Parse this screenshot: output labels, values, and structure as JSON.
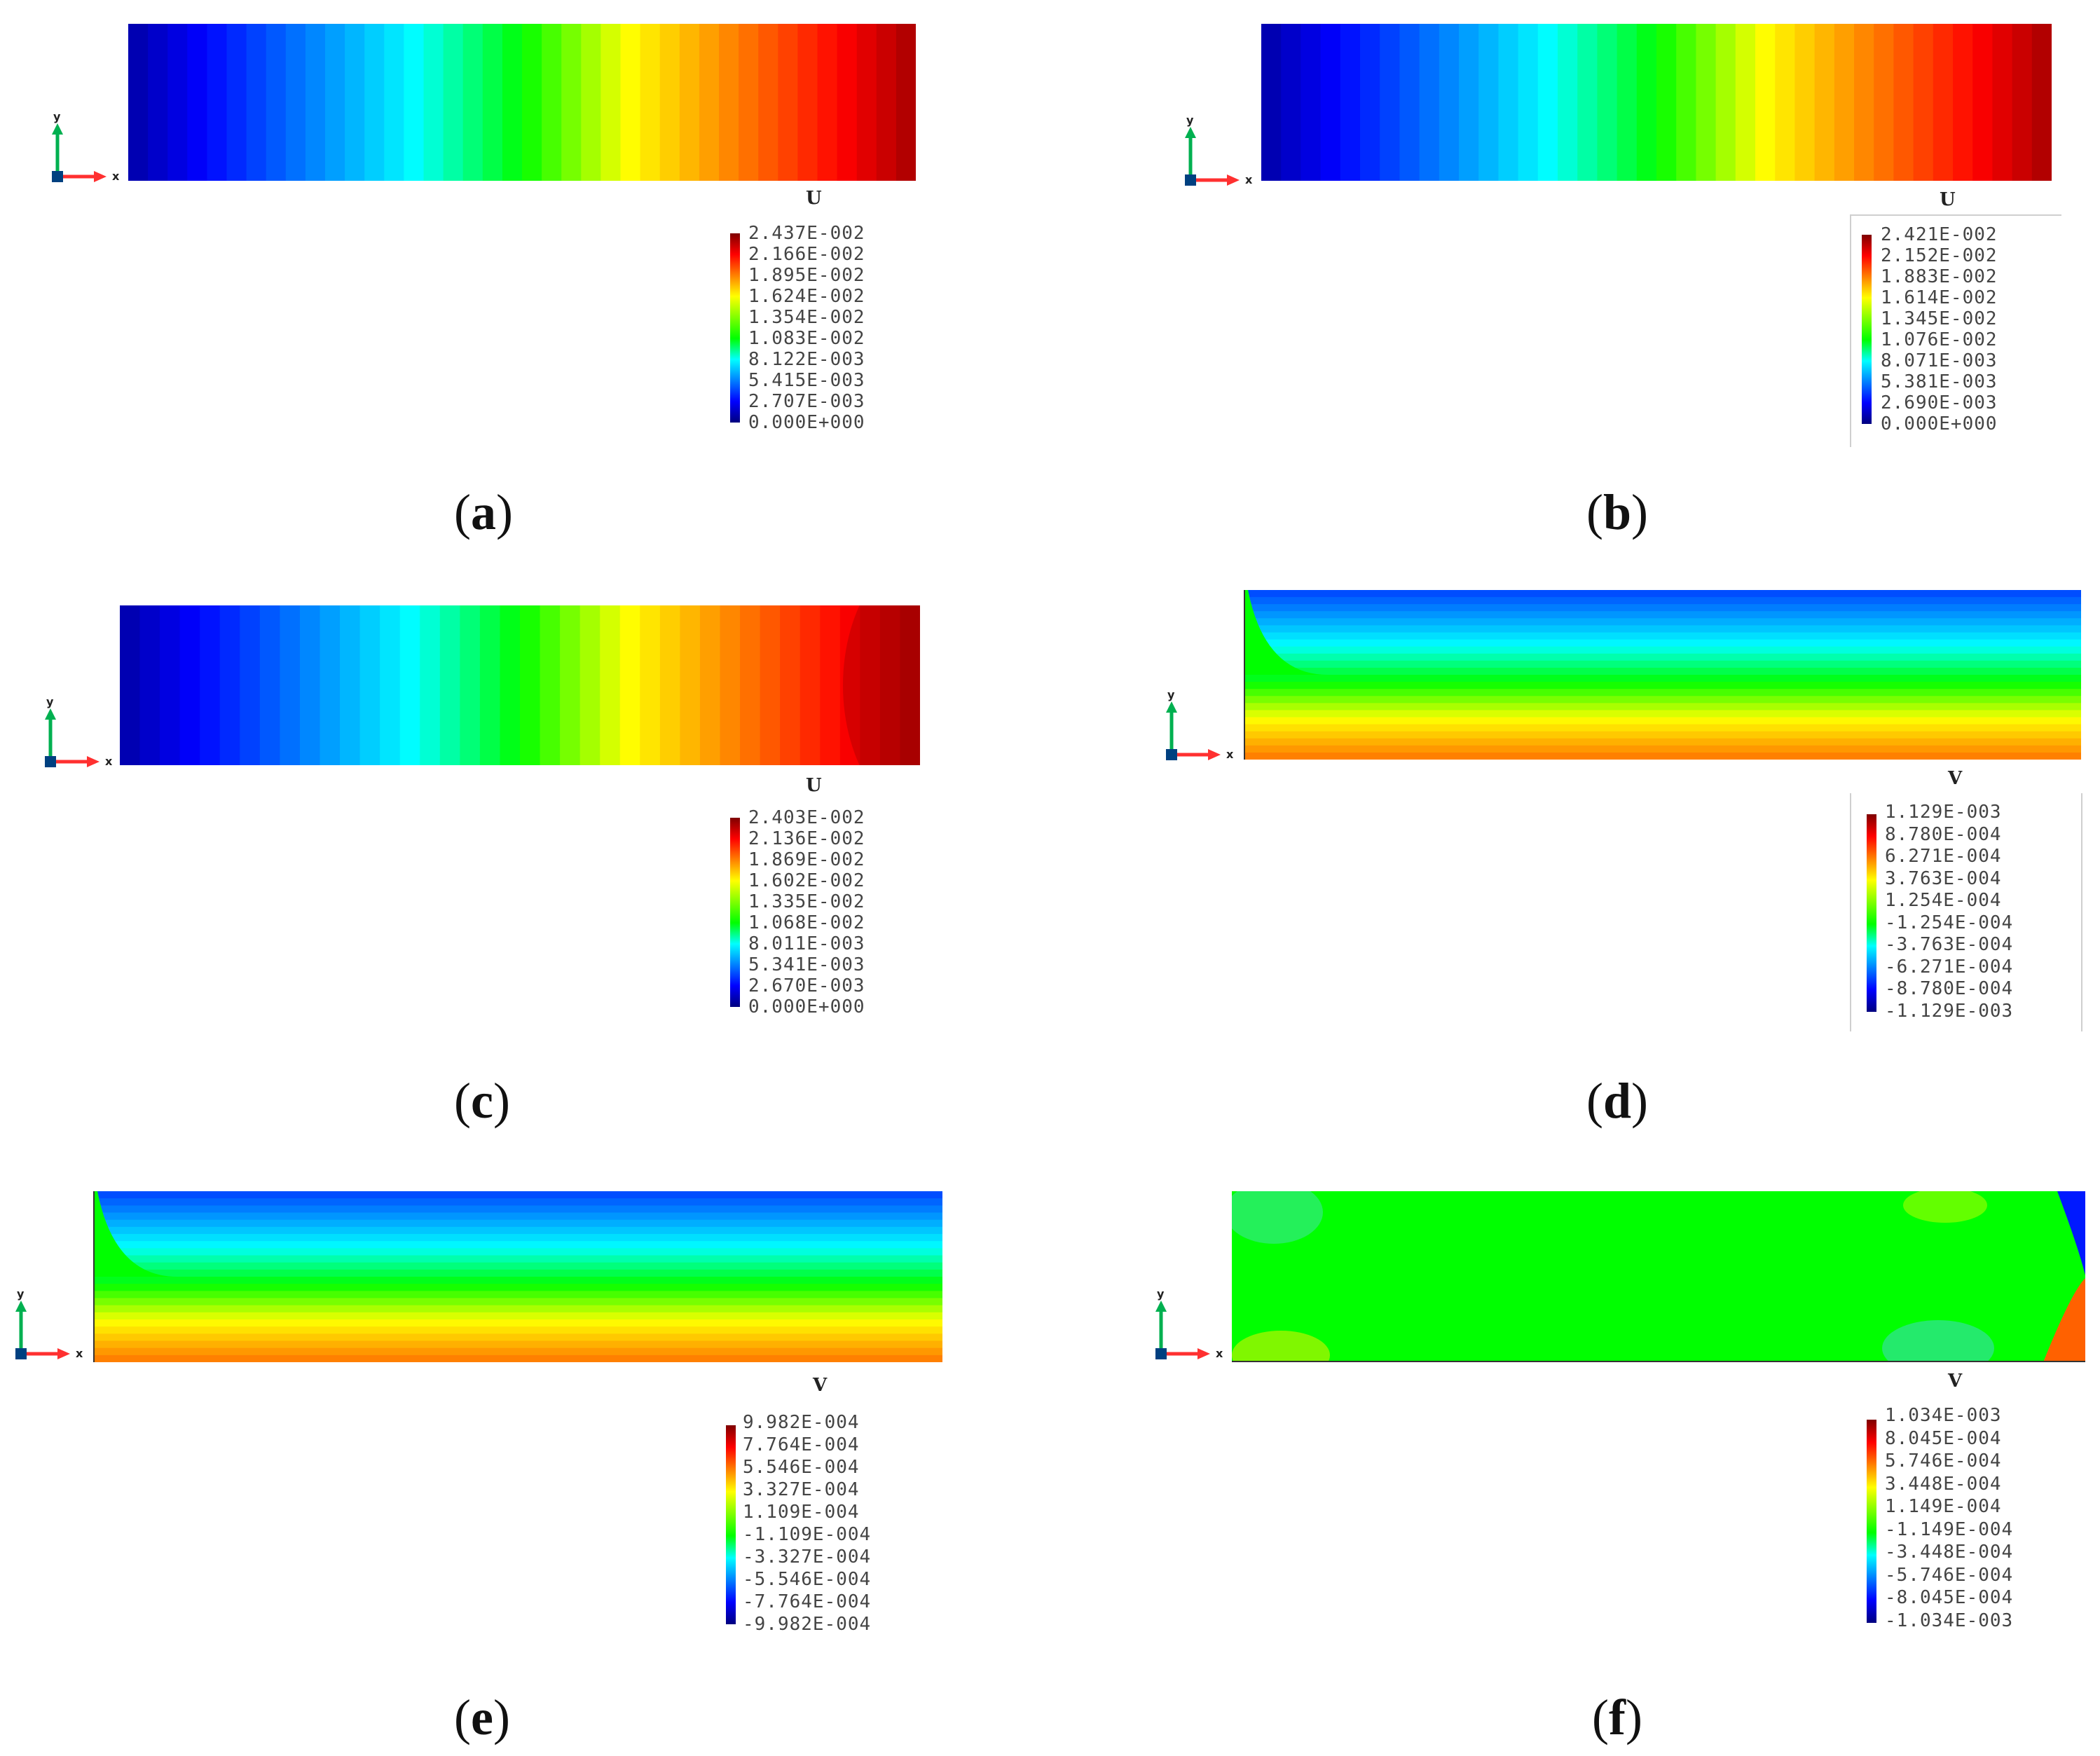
{
  "colors": {
    "scale": [
      "#00007f",
      "#0000ff",
      "#0080ff",
      "#00ffff",
      "#00ff00",
      "#80ff00",
      "#ffff00",
      "#ff8000",
      "#ff0000",
      "#7f0000"
    ],
    "axis_x": "#ff3030",
    "axis_y": "#00b050",
    "axis_z": "#004080"
  },
  "axes_labels": {
    "x": "x",
    "y": "y"
  },
  "panels": [
    {
      "id": "a",
      "caption_letter": "a",
      "field_variable": "U",
      "pattern": "horizontal-gradient",
      "legend": [
        "2.437E-002",
        "2.166E-002",
        "1.895E-002",
        "1.624E-002",
        "1.354E-002",
        "1.083E-002",
        "8.122E-003",
        "5.415E-003",
        "2.707E-003",
        "0.000E+000"
      ]
    },
    {
      "id": "b",
      "caption_letter": "b",
      "field_variable": "U",
      "pattern": "horizontal-gradient",
      "legend": [
        "2.421E-002",
        "2.152E-002",
        "1.883E-002",
        "1.614E-002",
        "1.345E-002",
        "1.076E-002",
        "8.071E-003",
        "5.381E-003",
        "2.690E-003",
        "0.000E+000"
      ]
    },
    {
      "id": "c",
      "caption_letter": "c",
      "field_variable": "U",
      "pattern": "horizontal-gradient",
      "legend": [
        "2.403E-002",
        "2.136E-002",
        "1.869E-002",
        "1.602E-002",
        "1.335E-002",
        "1.068E-002",
        "8.011E-003",
        "5.341E-003",
        "2.670E-003",
        "0.000E+000"
      ]
    },
    {
      "id": "d",
      "caption_letter": "d",
      "field_variable": "V",
      "pattern": "vertical-bands",
      "legend": [
        "1.129E-003",
        "8.780E-004",
        "6.271E-004",
        "3.763E-004",
        "1.254E-004",
        "-1.254E-004",
        "-3.763E-004",
        "-6.271E-004",
        "-8.780E-004",
        "-1.129E-003"
      ]
    },
    {
      "id": "e",
      "caption_letter": "e",
      "field_variable": "V",
      "pattern": "vertical-bands",
      "legend": [
        "9.982E-004",
        "7.764E-004",
        "5.546E-004",
        "3.327E-004",
        "1.109E-004",
        "-1.109E-004",
        "-3.327E-004",
        "-5.546E-004",
        "-7.764E-004",
        "-9.982E-004"
      ]
    },
    {
      "id": "f",
      "caption_letter": "f",
      "field_variable": "V",
      "pattern": "uniform-with-corners",
      "legend": [
        "1.034E-003",
        "8.045E-004",
        "5.746E-004",
        "3.448E-004",
        "1.149E-004",
        "-1.149E-004",
        "-3.448E-004",
        "-5.746E-004",
        "-8.045E-004",
        "-1.034E-003"
      ]
    }
  ]
}
